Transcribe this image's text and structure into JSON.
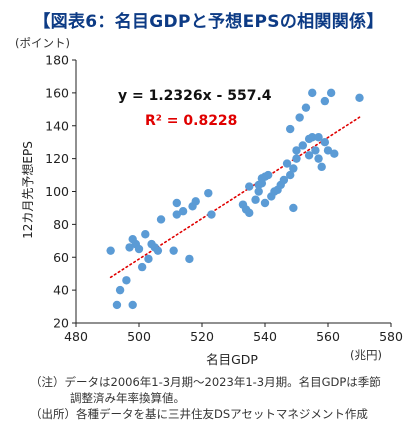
{
  "title": "【図表6：名目GDPと予想EPSの相関関係】",
  "chart_data": {
    "type": "scatter",
    "title": "",
    "xlabel": "名目GDP",
    "xunit": "(兆円)",
    "ylabel": "12カ月先予想EPS",
    "yunit": "(ポイント)",
    "xlim": [
      480,
      580
    ],
    "ylim": [
      20,
      180
    ],
    "xticks": [
      480,
      500,
      520,
      540,
      560,
      580
    ],
    "yticks": [
      20,
      40,
      60,
      80,
      100,
      120,
      140,
      160,
      180
    ],
    "grid": false,
    "marker_color": "#5b9bd5",
    "trendline": {
      "slope": 1.2326,
      "intercept": -557.4,
      "equation": "y = 1.2326x - 557.4",
      "r2": "R² = 0.8228",
      "color": "#e00000",
      "style": "dotted"
    },
    "points": [
      [
        491,
        64
      ],
      [
        493,
        31
      ],
      [
        494,
        40
      ],
      [
        496,
        46
      ],
      [
        497,
        66
      ],
      [
        498,
        31
      ],
      [
        498,
        71
      ],
      [
        499,
        68
      ],
      [
        500,
        65
      ],
      [
        501,
        54
      ],
      [
        502,
        74
      ],
      [
        503,
        59
      ],
      [
        504,
        68
      ],
      [
        505,
        66
      ],
      [
        506,
        64
      ],
      [
        507,
        83
      ],
      [
        511,
        64
      ],
      [
        512,
        93
      ],
      [
        512,
        86
      ],
      [
        514,
        88
      ],
      [
        516,
        59
      ],
      [
        517,
        91
      ],
      [
        518,
        94
      ],
      [
        522,
        99
      ],
      [
        523,
        86
      ],
      [
        533,
        92
      ],
      [
        534,
        89
      ],
      [
        535,
        87
      ],
      [
        535,
        103
      ],
      [
        537,
        95
      ],
      [
        538,
        100
      ],
      [
        538,
        104
      ],
      [
        539,
        108
      ],
      [
        539,
        105
      ],
      [
        540,
        93
      ],
      [
        540,
        109
      ],
      [
        541,
        110
      ],
      [
        542,
        97
      ],
      [
        543,
        100
      ],
      [
        544,
        101
      ],
      [
        545,
        104
      ],
      [
        546,
        107
      ],
      [
        547,
        117
      ],
      [
        548,
        110
      ],
      [
        548,
        138
      ],
      [
        549,
        90
      ],
      [
        549,
        114
      ],
      [
        550,
        125
      ],
      [
        550,
        120
      ],
      [
        551,
        145
      ],
      [
        552,
        128
      ],
      [
        553,
        151
      ],
      [
        554,
        132
      ],
      [
        554,
        122
      ],
      [
        555,
        133
      ],
      [
        555,
        160
      ],
      [
        556,
        125
      ],
      [
        557,
        133
      ],
      [
        557,
        120
      ],
      [
        558,
        115
      ],
      [
        559,
        130
      ],
      [
        559,
        155
      ],
      [
        560,
        125
      ],
      [
        561,
        160
      ],
      [
        562,
        123
      ],
      [
        570,
        157
      ]
    ]
  },
  "notes": {
    "line1": "（注）データは2006年1-3月期～2023年1-3月期。名目GDPは季節",
    "line2": "調整済み年率換算値。",
    "line3": "（出所）各種データを基に三井住友DSアセットマネジメント作成"
  }
}
